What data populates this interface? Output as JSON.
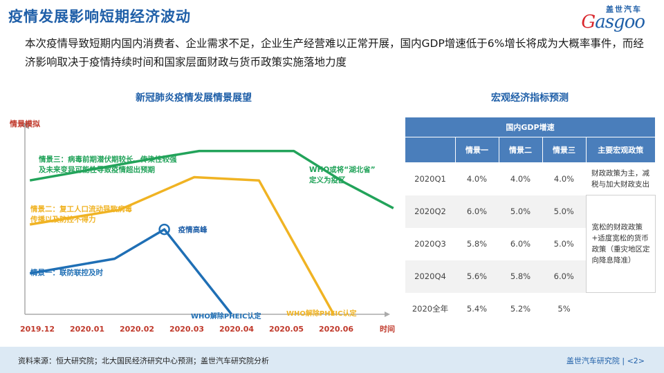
{
  "title": "疫情发展影响短期经济波动",
  "logo": {
    "cn": "盖世汽车",
    "en_g": "G",
    "en_rest": "asgoo"
  },
  "intro": "本次疫情导致短期内国内消费者、企业需求不足，企业生产经营难以正常开展，国内GDP增速低于6%增长将成为大概率事件，而经济影响取决于疫情持续时间和国家层面财政与货币政策实施落地力度",
  "chart": {
    "title": "新冠肺炎疫情发展情景展望",
    "ylabel": "情景模拟",
    "xlabel": "时间",
    "peak_label": "疫情高峰",
    "who_label_1": "WHO解除PHEIC认定",
    "who_label_2": "WHO解除PHEIC认定",
    "who_label_3": "WHO或将“湖北省”",
    "who_label_3b": "定义为疫区"
  },
  "chart_data": {
    "type": "line",
    "categories": [
      "2019.12",
      "2020.01",
      "2020.02",
      "2020.03",
      "2020.04",
      "2020.05",
      "2020.06"
    ],
    "ylabel": "情景模拟",
    "xlabel": "时间",
    "series": [
      {
        "name": "情景一：联防联控及时",
        "name_line2": "",
        "color": "#1f6fb5",
        "points": [
          [
            0.1,
            25
          ],
          [
            1.8,
            34
          ],
          [
            2.8,
            52
          ],
          [
            4.15,
            0
          ]
        ]
      },
      {
        "name": "情景二：复工人口流动导致病毒",
        "name_line2": "传播以及防控不得力",
        "color": "#f0b323",
        "points": [
          [
            0.1,
            55
          ],
          [
            1.9,
            64
          ],
          [
            3.4,
            84
          ],
          [
            4.7,
            82
          ],
          [
            6.2,
            0
          ]
        ]
      },
      {
        "name": "情景三：病毒前期潜伏期较长、传染性较强",
        "name_line2": "及未来变异可能性导致疫情超出预期",
        "color": "#22a35a",
        "points": [
          [
            0.1,
            82
          ],
          [
            2.5,
            95
          ],
          [
            3.5,
            100
          ],
          [
            4.4,
            100
          ],
          [
            5.4,
            100
          ],
          [
            6.4,
            81
          ],
          [
            7.4,
            65
          ]
        ]
      }
    ],
    "peak": {
      "x": 2.8,
      "y": 52
    },
    "ylim": [
      0,
      110
    ],
    "grid": false,
    "legend": "inline labels"
  },
  "table": {
    "title": "宏观经济指标预测",
    "band": "国内GDP增速",
    "headers": [
      "",
      "情景一",
      "情景二",
      "情景三",
      "主要宏观政策"
    ],
    "rows": [
      {
        "period": "2020Q1",
        "s1": "4.0%",
        "s2": "4.0%",
        "s3": "4.0%"
      },
      {
        "period": "2020Q2",
        "s1": "6.0%",
        "s2": "5.0%",
        "s3": "5.0%"
      },
      {
        "period": "2020Q3",
        "s1": "5.8%",
        "s2": "6.0%",
        "s3": "5.0%"
      },
      {
        "period": "2020Q4",
        "s1": "5.6%",
        "s2": "5.8%",
        "s3": "6.0%"
      },
      {
        "period": "2020全年",
        "s1": "5.4%",
        "s2": "5.2%",
        "s3": "5%"
      }
    ],
    "policy_1": "财政政策为主，减税与加大财政支出",
    "policy_2": "宽松的财政政策+适度宽松的货币政策（重灾地区定向降息降准）"
  },
  "footer": {
    "source": "资料来源：恒大研究院；北大国民经济研究中心预测；盖世汽车研究院分析",
    "brand": "盖世汽车研究院",
    "page": "<2>"
  }
}
